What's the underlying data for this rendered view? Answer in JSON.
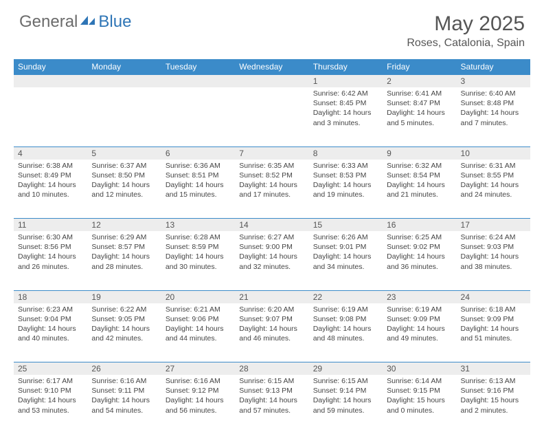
{
  "brand": {
    "word1": "General",
    "word2": "Blue"
  },
  "title": "May 2025",
  "location": "Roses, Catalonia, Spain",
  "columns": [
    "Sunday",
    "Monday",
    "Tuesday",
    "Wednesday",
    "Thursday",
    "Friday",
    "Saturday"
  ],
  "style": {
    "header_bg": "#3b8bc9",
    "header_fg": "#ffffff",
    "daynum_bg": "#ededed",
    "border_color": "#3b8bc9",
    "body_font_size": 10.5,
    "title_font_size": 30,
    "logo_gray": "#6b6b6b",
    "logo_blue": "#2e75b6"
  },
  "weeks": [
    [
      null,
      null,
      null,
      null,
      {
        "n": "1",
        "sr": "6:42 AM",
        "ss": "8:45 PM",
        "dl": "14 hours and 3 minutes."
      },
      {
        "n": "2",
        "sr": "6:41 AM",
        "ss": "8:47 PM",
        "dl": "14 hours and 5 minutes."
      },
      {
        "n": "3",
        "sr": "6:40 AM",
        "ss": "8:48 PM",
        "dl": "14 hours and 7 minutes."
      }
    ],
    [
      {
        "n": "4",
        "sr": "6:38 AM",
        "ss": "8:49 PM",
        "dl": "14 hours and 10 minutes."
      },
      {
        "n": "5",
        "sr": "6:37 AM",
        "ss": "8:50 PM",
        "dl": "14 hours and 12 minutes."
      },
      {
        "n": "6",
        "sr": "6:36 AM",
        "ss": "8:51 PM",
        "dl": "14 hours and 15 minutes."
      },
      {
        "n": "7",
        "sr": "6:35 AM",
        "ss": "8:52 PM",
        "dl": "14 hours and 17 minutes."
      },
      {
        "n": "8",
        "sr": "6:33 AM",
        "ss": "8:53 PM",
        "dl": "14 hours and 19 minutes."
      },
      {
        "n": "9",
        "sr": "6:32 AM",
        "ss": "8:54 PM",
        "dl": "14 hours and 21 minutes."
      },
      {
        "n": "10",
        "sr": "6:31 AM",
        "ss": "8:55 PM",
        "dl": "14 hours and 24 minutes."
      }
    ],
    [
      {
        "n": "11",
        "sr": "6:30 AM",
        "ss": "8:56 PM",
        "dl": "14 hours and 26 minutes."
      },
      {
        "n": "12",
        "sr": "6:29 AM",
        "ss": "8:57 PM",
        "dl": "14 hours and 28 minutes."
      },
      {
        "n": "13",
        "sr": "6:28 AM",
        "ss": "8:59 PM",
        "dl": "14 hours and 30 minutes."
      },
      {
        "n": "14",
        "sr": "6:27 AM",
        "ss": "9:00 PM",
        "dl": "14 hours and 32 minutes."
      },
      {
        "n": "15",
        "sr": "6:26 AM",
        "ss": "9:01 PM",
        "dl": "14 hours and 34 minutes."
      },
      {
        "n": "16",
        "sr": "6:25 AM",
        "ss": "9:02 PM",
        "dl": "14 hours and 36 minutes."
      },
      {
        "n": "17",
        "sr": "6:24 AM",
        "ss": "9:03 PM",
        "dl": "14 hours and 38 minutes."
      }
    ],
    [
      {
        "n": "18",
        "sr": "6:23 AM",
        "ss": "9:04 PM",
        "dl": "14 hours and 40 minutes."
      },
      {
        "n": "19",
        "sr": "6:22 AM",
        "ss": "9:05 PM",
        "dl": "14 hours and 42 minutes."
      },
      {
        "n": "20",
        "sr": "6:21 AM",
        "ss": "9:06 PM",
        "dl": "14 hours and 44 minutes."
      },
      {
        "n": "21",
        "sr": "6:20 AM",
        "ss": "9:07 PM",
        "dl": "14 hours and 46 minutes."
      },
      {
        "n": "22",
        "sr": "6:19 AM",
        "ss": "9:08 PM",
        "dl": "14 hours and 48 minutes."
      },
      {
        "n": "23",
        "sr": "6:19 AM",
        "ss": "9:09 PM",
        "dl": "14 hours and 49 minutes."
      },
      {
        "n": "24",
        "sr": "6:18 AM",
        "ss": "9:09 PM",
        "dl": "14 hours and 51 minutes."
      }
    ],
    [
      {
        "n": "25",
        "sr": "6:17 AM",
        "ss": "9:10 PM",
        "dl": "14 hours and 53 minutes."
      },
      {
        "n": "26",
        "sr": "6:16 AM",
        "ss": "9:11 PM",
        "dl": "14 hours and 54 minutes."
      },
      {
        "n": "27",
        "sr": "6:16 AM",
        "ss": "9:12 PM",
        "dl": "14 hours and 56 minutes."
      },
      {
        "n": "28",
        "sr": "6:15 AM",
        "ss": "9:13 PM",
        "dl": "14 hours and 57 minutes."
      },
      {
        "n": "29",
        "sr": "6:15 AM",
        "ss": "9:14 PM",
        "dl": "14 hours and 59 minutes."
      },
      {
        "n": "30",
        "sr": "6:14 AM",
        "ss": "9:15 PM",
        "dl": "15 hours and 0 minutes."
      },
      {
        "n": "31",
        "sr": "6:13 AM",
        "ss": "9:16 PM",
        "dl": "15 hours and 2 minutes."
      }
    ]
  ],
  "labels": {
    "sunrise": "Sunrise: ",
    "sunset": "Sunset: ",
    "daylight": "Daylight: "
  }
}
